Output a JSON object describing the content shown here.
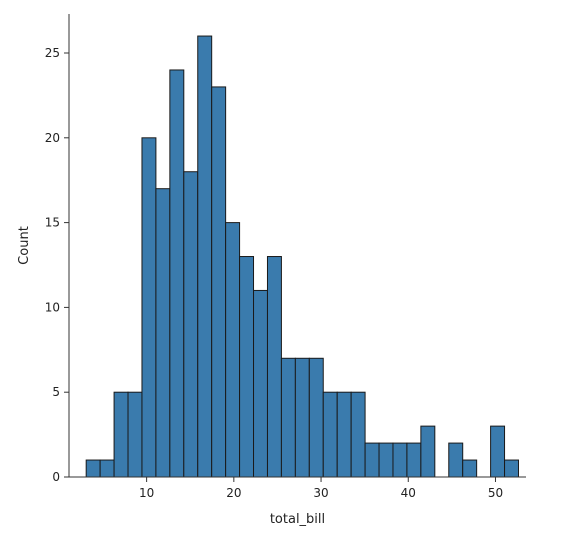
{
  "chart_data": {
    "type": "bar",
    "title": "",
    "xlabel": "total_bill",
    "ylabel": "Count",
    "xlim": [
      1.1,
      53.5
    ],
    "ylim": [
      0,
      27.3
    ],
    "x_ticks": [
      10,
      20,
      30,
      40,
      50
    ],
    "y_ticks": [
      0,
      5,
      10,
      15,
      20,
      25
    ],
    "grid": false,
    "legend": "none",
    "bins": {
      "start": 3.07,
      "width": 1.599,
      "counts": [
        1,
        1,
        5,
        5,
        20,
        17,
        24,
        18,
        26,
        23,
        15,
        13,
        11,
        13,
        7,
        7,
        7,
        5,
        5,
        5,
        2,
        2,
        2,
        2,
        3,
        0,
        2,
        1,
        0,
        3,
        1
      ]
    },
    "colors": {
      "bar_fill": "#3a7bad",
      "bar_edge": "#1a1a1a",
      "axis": "#333333"
    }
  }
}
